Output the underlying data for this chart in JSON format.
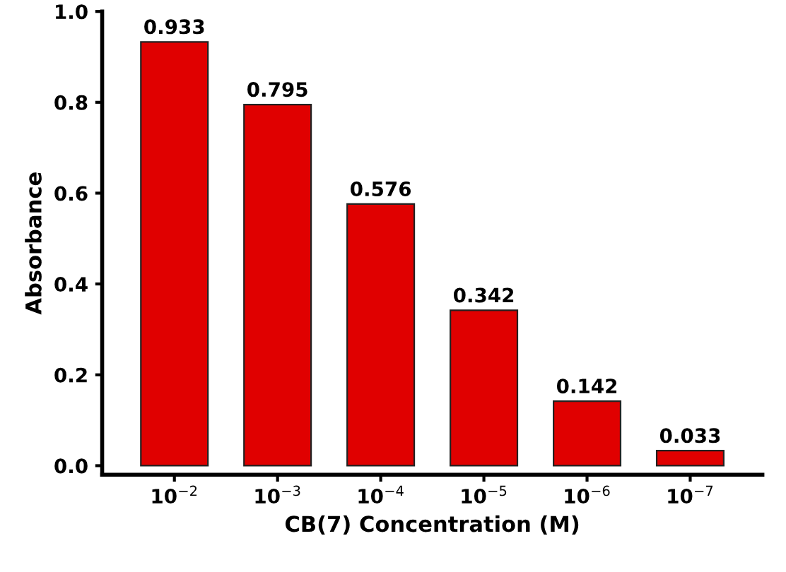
{
  "chart_data": {
    "type": "bar",
    "xlabel": "CB(7) Concentration (M)",
    "ylabel": "Absorbance",
    "categories": [
      "10$^{−2}$",
      "10$^{−3}$",
      "10$^{−4}$",
      "10$^{−5}$",
      "10$^{−6}$",
      "10$^{−7}$"
    ],
    "values": [
      0.933,
      0.795,
      0.576,
      0.342,
      0.142,
      0.033
    ],
    "color": "#e00000",
    "data_labels": true,
    "ylim": [
      -0.02,
      1.0
    ],
    "yticks": [
      {
        "value": 0,
        "label": "0.0"
      },
      {
        "value": 0.2,
        "label": "0.2"
      },
      {
        "value": 0.4,
        "label": "0.4"
      },
      {
        "value": 0.6,
        "label": "0.6"
      },
      {
        "value": 0.8,
        "label": "0.8"
      },
      {
        "value": 1.0,
        "label": "1.0"
      }
    ],
    "grid": false,
    "legend": false
  }
}
